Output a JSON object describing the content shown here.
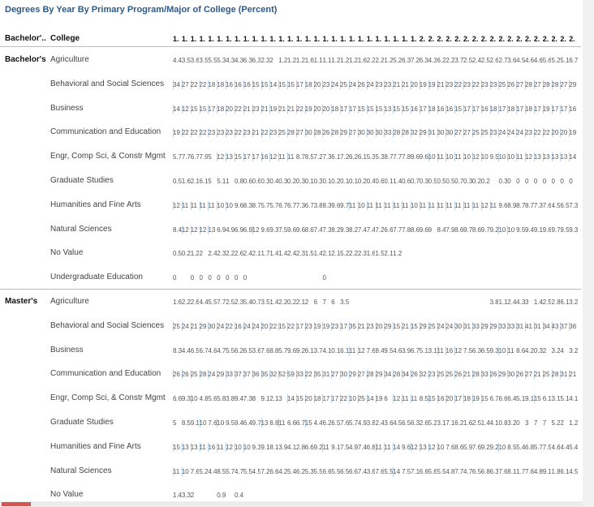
{
  "title": "Degrees By Year By Primary Program/Major of College (Percent)",
  "header": {
    "group": "Bachelor'..",
    "college": "College",
    "columns": [
      "1.",
      "1.",
      "1.",
      "1.",
      "1.",
      "1.",
      "1.",
      "1.",
      "1.",
      "1.",
      "1.",
      "1.",
      "1.",
      "1.",
      "1.",
      "1.",
      "1.",
      "1.",
      "1.",
      "1.",
      "1.",
      "1.",
      "1.",
      "1.",
      "1.",
      "1.",
      "1.",
      "1.",
      "2.",
      "2.",
      "2.",
      "2.",
      "2.",
      "2.",
      "2.",
      "2.",
      "2.",
      "2.",
      "2.",
      "2.",
      "2.",
      "2.",
      "2.",
      "2.",
      "2.",
      "2."
    ]
  },
  "groups": [
    {
      "label": "Bachelor's",
      "rows": [
        {
          "college": "Agriculture",
          "cells": [
            4.4,
            3.5,
            3.6,
            3.5,
            5.5,
            5.3,
            4.3,
            4.3,
            6.3,
            6.3,
            2.3,
            2.0,
            1.2,
            1.2,
            1.2,
            1.6,
            1.1,
            1.1,
            1.2,
            1.2,
            1.2,
            1.6,
            2.2,
            2.2,
            1.2,
            5.2,
            6.3,
            7.2,
            6.3,
            4.3,
            6.2,
            2.2,
            3.7,
            2.5,
            2.4,
            2.5,
            2.6,
            2.7,
            3.6,
            4.5,
            4.6,
            4.6,
            5.6,
            5.2,
            5.1,
            6.7
          ]
        },
        {
          "college": "Behavioral and Social Sciences",
          "cells": [
            34,
            27,
            22,
            22,
            18,
            18,
            16,
            16,
            16,
            15,
            15,
            14,
            15,
            15,
            17,
            18,
            20,
            23,
            24,
            25,
            24,
            26,
            24,
            23,
            23,
            21,
            21,
            20,
            19,
            19,
            21,
            23,
            22,
            23,
            22,
            23,
            23,
            25,
            26,
            27,
            28,
            27,
            28,
            28,
            27,
            29
          ]
        },
        {
          "college": "Business",
          "cells": [
            14,
            12,
            15,
            15,
            17,
            18,
            20,
            22,
            21,
            23,
            21,
            19,
            21,
            21,
            22,
            19,
            20,
            20,
            18,
            17,
            17,
            15,
            15,
            15,
            13,
            15,
            15,
            16,
            17,
            18,
            16,
            16,
            15,
            17,
            17,
            16,
            18,
            17,
            18,
            17,
            18,
            17,
            19,
            17,
            17,
            16
          ]
        },
        {
          "college": "Communication and Education",
          "cells": [
            19,
            22,
            22,
            22,
            23,
            23,
            23,
            22,
            23,
            21,
            22,
            23,
            25,
            28,
            27,
            30,
            28,
            26,
            28,
            29,
            27,
            30,
            30,
            30,
            33,
            28,
            28,
            32,
            29,
            31,
            30,
            30,
            27,
            27,
            25,
            25,
            23,
            24,
            24,
            24,
            23,
            22,
            22,
            20,
            20,
            19
          ]
        },
        {
          "college": "Engr, Comp Sci, & Constr Mgmt",
          "cells": [
            5.7,
            7.7,
            6.7,
            7.9,
            5.0,
            12,
            13,
            15,
            17,
            17,
            16,
            12,
            11,
            11,
            8.7,
            8.5,
            7.2,
            7.3,
            6.1,
            7.2,
            6.2,
            6.1,
            5.3,
            5.3,
            8.7,
            7.7,
            7.8,
            9.6,
            9.6,
            10,
            11,
            10,
            11,
            10,
            12,
            10,
            9.5,
            10,
            10,
            11,
            12,
            13,
            13,
            13,
            13,
            14
          ]
        },
        {
          "college": "Graduate Studies",
          "cells": [
            0.5,
            1.6,
            2.1,
            6.1,
            5.0,
            5.1,
            1.0,
            0.8,
            0.6,
            0.6,
            0.3,
            0.4,
            0.3,
            0.2,
            0.3,
            0.1,
            0.3,
            0.1,
            0.2,
            0.1,
            0.1,
            0.2,
            0.4,
            0.6,
            0.1,
            1.4,
            0.6,
            0.7,
            0.3,
            0.5,
            0.5,
            0.5,
            0.7,
            0.3,
            0.2,
            0.2,
            null,
            0.3,
            0.0,
            0.0,
            0.0,
            0.0,
            0.0,
            0.0,
            0.0,
            0.0
          ]
        },
        {
          "college": "Humanities and Fine Arts",
          "cells": [
            12,
            11,
            11,
            11,
            11,
            10,
            10,
            9.6,
            8.3,
            8.7,
            5.7,
            5.7,
            6.7,
            6.7,
            7.3,
            6.7,
            3.8,
            8.3,
            9.6,
            9.7,
            11,
            10,
            11,
            11,
            11,
            11,
            11,
            10,
            11,
            11,
            11,
            11,
            11,
            11,
            11,
            12,
            11,
            9.6,
            8.9,
            8.7,
            8.7,
            7.3,
            7.6,
            4.5,
            6.5,
            7.3
          ]
        },
        {
          "college": "Natural Sciences",
          "cells": [
            8.4,
            12,
            12,
            12,
            13,
            6.9,
            4.9,
            6.9,
            6.9,
            12,
            9.6,
            9.3,
            7.5,
            9.6,
            9.6,
            8.6,
            7.4,
            7.3,
            8.2,
            9.3,
            8.2,
            7.4,
            7.4,
            7.2,
            6.6,
            7.7,
            7.8,
            8.6,
            9.6,
            9.0,
            8.4,
            7.9,
            8.6,
            9.7,
            8.6,
            9.7,
            9.2,
            10,
            10,
            9.5,
            9.4,
            9.1,
            9.6,
            9.7,
            9.5,
            9.3
          ]
        },
        {
          "college": "No Value",
          "cells": [
            0.5,
            0.2,
            1.2,
            2.0,
            2.4,
            2.3,
            2.2,
            2.6,
            2.4,
            2.1,
            1.7,
            1.4,
            1.4,
            2.4,
            2.3,
            1.5,
            1.4,
            2.1,
            2.1,
            5.2,
            2.2,
            2.3,
            1.6,
            1.5,
            2.1,
            1.2,
            null,
            null,
            null,
            null,
            null,
            null,
            null,
            null,
            null,
            null,
            null,
            null,
            null,
            null,
            null,
            null,
            null,
            null,
            null,
            null
          ]
        },
        {
          "college": "Undergraduate Education",
          "cells": [
            0.0,
            null,
            0.0,
            0.0,
            0.0,
            0.0,
            0.0,
            0.0,
            0.0,
            null,
            null,
            null,
            null,
            null,
            null,
            null,
            null,
            0.0,
            null,
            null,
            null,
            null,
            null,
            null,
            null,
            null,
            null,
            null,
            null,
            null,
            null,
            null,
            null,
            null,
            null,
            null,
            null,
            null,
            null,
            null,
            null,
            null,
            null,
            null,
            null,
            null
          ]
        }
      ]
    },
    {
      "label": "Master's",
      "rows": [
        {
          "college": "Agriculture",
          "cells": [
            1.6,
            2.2,
            2.6,
            4.4,
            5.5,
            7.7,
            2.5,
            2.3,
            5.4,
            0.7,
            3.5,
            1.4,
            2.2,
            0.2,
            2.1,
            2.0,
            6.0,
            7.0,
            6.0,
            3.5,
            null,
            null,
            null,
            null,
            null,
            null,
            null,
            null,
            null,
            null,
            null,
            null,
            null,
            null,
            null,
            null,
            3.8,
            1.1,
            2.4,
            4.3,
            3.0,
            1.4,
            2.5,
            2.8,
            6.1,
            3.2
          ]
        },
        {
          "college": "Behavioral and Social Sciences",
          "cells": [
            25,
            24,
            21,
            29,
            30,
            24,
            22,
            16,
            24,
            24,
            20,
            22,
            15,
            22,
            17,
            23,
            19,
            19,
            23,
            17,
            35,
            21,
            23,
            20,
            29,
            15,
            21,
            15,
            29,
            25,
            24,
            24,
            30,
            31,
            33,
            29,
            29,
            33,
            33,
            31,
            41,
            31,
            34,
            43,
            37,
            36
          ]
        },
        {
          "college": "Business",
          "cells": [
            8.3,
            4.4,
            6.5,
            6.7,
            4.6,
            4.7,
            5.5,
            6.2,
            6.5,
            3.6,
            7.6,
            8.8,
            5.7,
            9.6,
            9.2,
            6.1,
            3.7,
            4.1,
            0.1,
            6.1,
            11,
            12,
            7.6,
            8.4,
            9.5,
            4.6,
            3.9,
            6.7,
            5.1,
            3.1,
            11,
            16,
            12,
            7.5,
            6.3,
            6.5,
            9.3,
            10,
            11,
            8.6,
            4.2,
            0.3,
            2.0,
            3.2,
            4.0,
            3.2
          ]
        },
        {
          "college": "Communication and Education",
          "cells": [
            26,
            26,
            25,
            28,
            24,
            29,
            33,
            37,
            37,
            36,
            35,
            32,
            52,
            59,
            33,
            22,
            35,
            31,
            27,
            30,
            29,
            27,
            28,
            29,
            34,
            28,
            34,
            26,
            32,
            23,
            25,
            25,
            26,
            21,
            28,
            33,
            26,
            29,
            30,
            26,
            27,
            21,
            25,
            28,
            31,
            21
          ]
        },
        {
          "college": "Engr, Comp Sci, & Constr Mgmt",
          "cells": [
            6.6,
            9.3,
            10,
            4.8,
            5.6,
            5.8,
            3.8,
            9.4,
            7.3,
            8.0,
            9.1,
            2.1,
            3.0,
            14,
            15,
            20,
            18,
            17,
            17,
            22,
            10,
            25,
            14,
            19,
            6.0,
            12,
            11,
            11,
            8.5,
            15,
            16,
            20,
            17,
            18,
            19,
            15,
            6.7,
            6.6,
            6.4,
            5.1,
            9.1,
            15,
            6.1,
            3.1,
            5.1,
            4.1
          ]
        },
        {
          "college": "Graduate Studies",
          "cells": [
            5.0,
            8.5,
            9.1,
            10,
            7.6,
            10,
            9.5,
            9.4,
            6.4,
            9.7,
            13,
            8.8,
            11,
            6.6,
            6.7,
            15,
            4.4,
            6.2,
            6.5,
            7.6,
            5.7,
            4.9,
            3.8,
            2.4,
            3.6,
            4.5,
            6.5,
            6.3,
            2.6,
            5.2,
            3.1,
            7.1,
            6.2,
            1.6,
            2.5,
            1.4,
            4.1,
            0.8,
            3.2,
            0.0,
            3.0,
            7.0,
            7.0,
            5.2,
            2.0,
            1.2
          ]
        },
        {
          "college": "Humanities and Fine Arts",
          "cells": [
            15,
            13,
            13,
            11,
            16,
            11,
            12,
            10,
            10,
            9.3,
            9.1,
            8.1,
            3.9,
            4.1,
            2.8,
            6.6,
            9.2,
            11,
            9.1,
            7.5,
            4.9,
            7.4,
            6.8,
            11,
            11,
            14,
            9.6,
            12,
            13,
            12,
            10,
            7.6,
            8.6,
            5.9,
            7.6,
            9.2,
            9.2,
            10,
            8.5,
            5.4,
            6.8,
            5.7,
            7.5,
            4.6,
            4.4,
            5.4
          ]
        },
        {
          "college": "Natural Sciences",
          "cells": [
            11,
            10,
            7.6,
            5.2,
            4.4,
            8.5,
            5.7,
            4.7,
            5.5,
            4.5,
            7.2,
            6.6,
            4.2,
            5.4,
            6.2,
            5.3,
            5.5,
            6.6,
            5.5,
            6.5,
            6.6,
            7.4,
            3.6,
            7.6,
            5.5,
            14,
            7.5,
            7.1,
            6.6,
            5.6,
            5.5,
            4.8,
            7.7,
            4.7,
            6.5,
            6.8,
            6.3,
            7.6,
            8.1,
            1.7,
            7.6,
            4.8,
            9.1,
            1.8,
            6.1,
            4.5
          ]
        },
        {
          "college": "No Value",
          "cells": [
            1.4,
            3.3,
            2.0,
            null,
            null,
            0.9,
            null,
            0.4,
            null,
            null,
            null,
            null,
            null,
            null,
            null,
            null,
            null,
            null,
            null,
            null,
            null,
            null,
            null,
            null,
            null,
            null,
            null,
            null,
            null,
            null,
            null,
            null,
            null,
            null,
            null,
            null,
            null,
            null,
            null,
            null,
            null,
            null,
            null,
            null,
            null,
            null
          ]
        }
      ]
    }
  ]
}
